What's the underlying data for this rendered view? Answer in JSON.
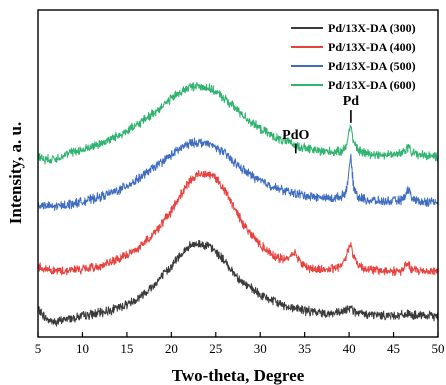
{
  "chart_data": {
    "type": "line",
    "xlabel": "Two-theta, Degree",
    "ylabel": "Intensity, a. u.",
    "xlim": [
      5,
      50
    ],
    "xticks": [
      5,
      10,
      15,
      20,
      25,
      30,
      35,
      40,
      45,
      50
    ],
    "yticks_shown": false,
    "legend_position": "top-right",
    "series": [
      {
        "name": "Pd/13X-DA (300)",
        "color": "#3a3a3a",
        "x": [
          5,
          6,
          7,
          8,
          9,
          10,
          12,
          14,
          16,
          18,
          20,
          21,
          22,
          23,
          24,
          25,
          26,
          27,
          28,
          30,
          32,
          33,
          34,
          35,
          36,
          38,
          39,
          39.5,
          40,
          40.2,
          40.5,
          41,
          42,
          44,
          46,
          46.5,
          47,
          48,
          50
        ],
        "values": [
          0.09,
          0.03,
          0.01,
          0.03,
          0.04,
          0.05,
          0.07,
          0.1,
          0.15,
          0.24,
          0.36,
          0.43,
          0.48,
          0.5,
          0.49,
          0.45,
          0.39,
          0.32,
          0.26,
          0.18,
          0.13,
          0.11,
          0.1,
          0.085,
          0.075,
          0.065,
          0.07,
          0.08,
          0.1,
          0.12,
          0.08,
          0.065,
          0.06,
          0.055,
          0.055,
          0.065,
          0.055,
          0.05,
          0.05
        ]
      },
      {
        "name": "Pd/13X-DA (400)",
        "color": "#e8423f",
        "x": [
          5,
          6,
          7,
          8,
          9,
          10,
          12,
          14,
          16,
          18,
          20,
          21,
          22,
          23,
          24,
          25,
          26,
          27,
          28,
          30,
          32,
          33,
          33.8,
          34.5,
          35,
          36,
          38,
          39,
          39.5,
          40,
          40.2,
          40.5,
          41,
          42,
          44,
          46,
          46.5,
          47,
          48,
          50
        ],
        "values": [
          0.36,
          0.34,
          0.33,
          0.33,
          0.34,
          0.34,
          0.36,
          0.4,
          0.46,
          0.56,
          0.7,
          0.8,
          0.88,
          0.93,
          0.94,
          0.91,
          0.83,
          0.73,
          0.63,
          0.49,
          0.41,
          0.4,
          0.45,
          0.39,
          0.36,
          0.34,
          0.34,
          0.36,
          0.4,
          0.48,
          0.5,
          0.42,
          0.37,
          0.34,
          0.33,
          0.33,
          0.38,
          0.34,
          0.33,
          0.33
        ]
      },
      {
        "name": "Pd/13X-DA (500)",
        "color": "#3e6cc0",
        "x": [
          5,
          6,
          7,
          8,
          9,
          10,
          12,
          14,
          16,
          18,
          20,
          21,
          22,
          23,
          24,
          25,
          26,
          27,
          28,
          30,
          32,
          34,
          36,
          38,
          39,
          39.5,
          39.8,
          40,
          40.2,
          40.5,
          41,
          42,
          44,
          46,
          46.5,
          46.8,
          47,
          48,
          50
        ],
        "values": [
          0.74,
          0.73,
          0.73,
          0.74,
          0.75,
          0.76,
          0.79,
          0.83,
          0.89,
          0.97,
          1.05,
          1.09,
          1.12,
          1.13,
          1.12,
          1.1,
          1.06,
          1.01,
          0.96,
          0.89,
          0.84,
          0.81,
          0.79,
          0.78,
          0.79,
          0.81,
          0.86,
          0.97,
          1.03,
          0.85,
          0.79,
          0.77,
          0.76,
          0.77,
          0.82,
          0.84,
          0.78,
          0.76,
          0.76
        ]
      },
      {
        "name": "Pd/13X-DA (600)",
        "color": "#2fb36f",
        "x": [
          5,
          6,
          7,
          8,
          9,
          10,
          12,
          14,
          16,
          18,
          20,
          21,
          22,
          23,
          24,
          25,
          26,
          27,
          28,
          30,
          32,
          34,
          36,
          38,
          39,
          39.5,
          39.8,
          40,
          40.2,
          40.5,
          41,
          42,
          44,
          46,
          46.5,
          46.8,
          47,
          48,
          50
        ],
        "values": [
          1.04,
          1.02,
          1.03,
          1.05,
          1.07,
          1.08,
          1.12,
          1.17,
          1.23,
          1.31,
          1.4,
          1.44,
          1.47,
          1.48,
          1.47,
          1.44,
          1.4,
          1.35,
          1.3,
          1.21,
          1.15,
          1.11,
          1.08,
          1.07,
          1.07,
          1.09,
          1.13,
          1.2,
          1.24,
          1.13,
          1.08,
          1.06,
          1.05,
          1.06,
          1.09,
          1.11,
          1.07,
          1.05,
          1.04
        ]
      }
    ],
    "annotations": [
      {
        "text": "PdO",
        "x": 34,
        "y": 1.15,
        "marker_bottom": 1.06
      },
      {
        "text": "Pd",
        "x": 40.2,
        "y": 1.36,
        "marker_bottom": 1.25
      }
    ]
  }
}
